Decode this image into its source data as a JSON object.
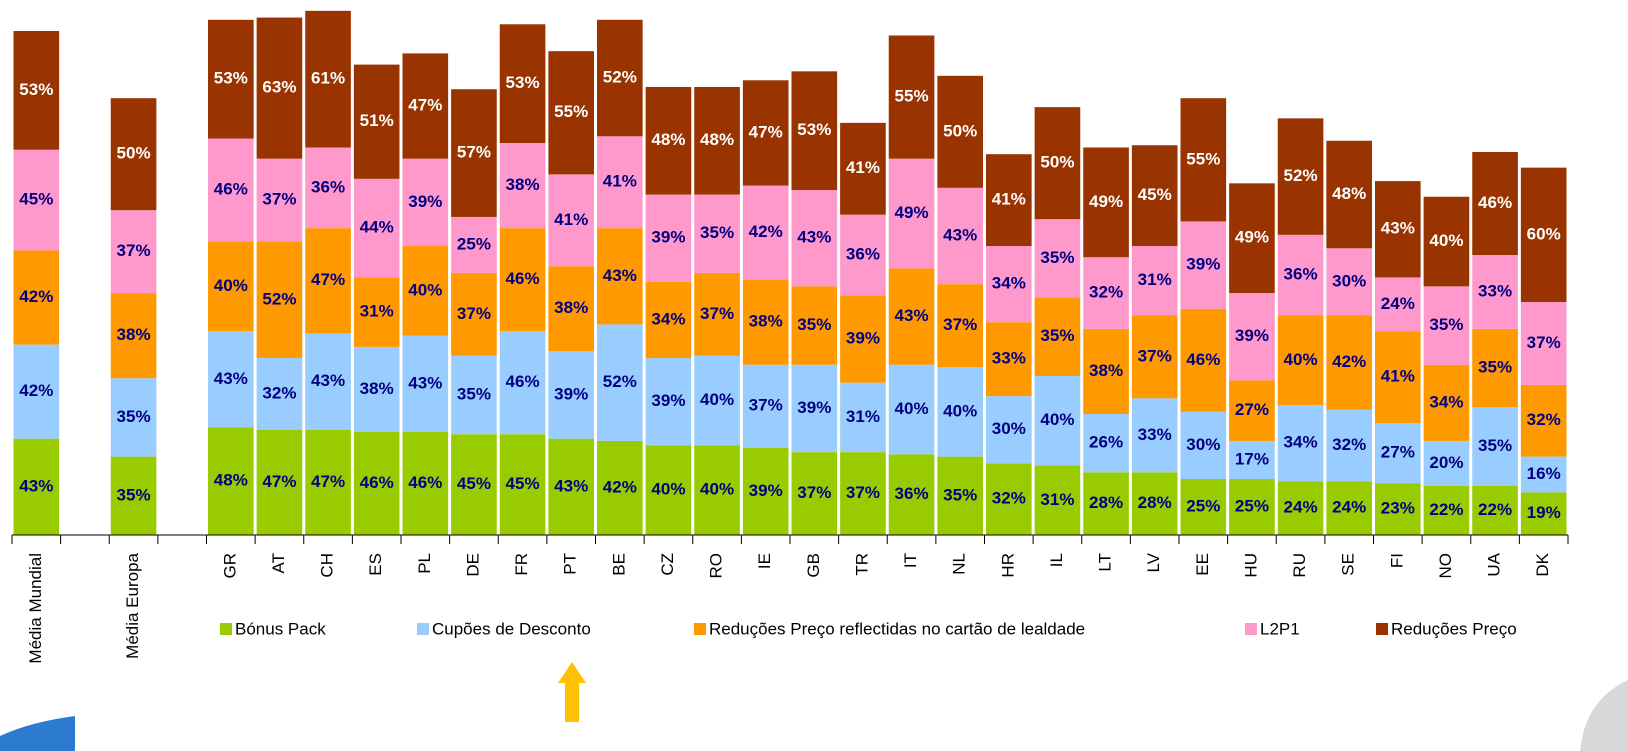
{
  "chart_data": {
    "type": "stacked_bar",
    "categories": [
      "Média Mundial",
      null,
      "Média Europa",
      null,
      "GR",
      "AT",
      "CH",
      "ES",
      "PL",
      "DE",
      "FR",
      "PT",
      "BE",
      "CZ",
      "RO",
      "IE",
      "GB",
      "TR",
      "IT",
      "NL",
      "HR",
      "IL",
      "LT",
      "LV",
      "EE",
      "HU",
      "RU",
      "SE",
      "FI",
      "NO",
      "UA",
      "DK"
    ],
    "series": [
      {
        "name": "Bónus Pack",
        "color": "#99cc00",
        "label_color": "#000080",
        "values": [
          43,
          null,
          35,
          null,
          48,
          47,
          47,
          46,
          46,
          45,
          45,
          43,
          42,
          40,
          40,
          39,
          37,
          37,
          36,
          35,
          32,
          31,
          28,
          28,
          25,
          25,
          24,
          24,
          23,
          22,
          22,
          19
        ],
        "value_labels": [
          "43%",
          null,
          "35%",
          null,
          "48%",
          "47%",
          "47%",
          "46%",
          "46%",
          "45%",
          "45%",
          "43%",
          "42%",
          "40%",
          "40%",
          "39%",
          "37%",
          "37%",
          "36%",
          "35%",
          "32%",
          "31%",
          "28%",
          "28%",
          "25%",
          "25%",
          "24%",
          "24%",
          "23%",
          "22%",
          "22%",
          "19%"
        ]
      },
      {
        "name": "Cupões de Desconto",
        "color": "#99ccff",
        "label_color": "#000080",
        "values": [
          42,
          null,
          35,
          null,
          43,
          32,
          43,
          38,
          43,
          35,
          46,
          39,
          52,
          39,
          40,
          37,
          39,
          31,
          40,
          40,
          30,
          40,
          26,
          33,
          30,
          17,
          34,
          32,
          27,
          20,
          35,
          16
        ],
        "value_labels": [
          "42%",
          null,
          "35%",
          null,
          "43%",
          "32%",
          "43%",
          "38%",
          "43%",
          "35%",
          "46%",
          "39%",
          "52%",
          "39%",
          "40%",
          "37%",
          "39%",
          "31%",
          "40%",
          "40%",
          "30%",
          "40%",
          "26%",
          "33%",
          "30%",
          "17%",
          "34%",
          "32%",
          "27%",
          "20%",
          "35%",
          "16%"
        ]
      },
      {
        "name": "Reduções Preço reflectidas no cartão de lealdade",
        "color": "#ff9900",
        "label_color": "#000080",
        "values": [
          42,
          null,
          38,
          null,
          40,
          52,
          47,
          31,
          40,
          37,
          46,
          38,
          43,
          34,
          37,
          38,
          35,
          39,
          43,
          37,
          33,
          35,
          38,
          37,
          46,
          27,
          40,
          42,
          41,
          34,
          35,
          32
        ],
        "value_labels": [
          "42%",
          null,
          "38%",
          null,
          "40%",
          "52%",
          "47%",
          "31%",
          "40%",
          "37%",
          "46%",
          "38%",
          "43%",
          "34%",
          "37%",
          "38%",
          "35%",
          "39%",
          "43%",
          "37%",
          "33%",
          "35%",
          "38%",
          "37%",
          "46%",
          "27%",
          "40%",
          "42%",
          "41%",
          "34%",
          "35%",
          "32%"
        ]
      },
      {
        "name": "L2P1",
        "color": "#ff99cc",
        "label_color": "#000080",
        "values": [
          45,
          null,
          37,
          null,
          46,
          37,
          36,
          44,
          39,
          25,
          38,
          41,
          41,
          39,
          35,
          42,
          43,
          36,
          49,
          43,
          34,
          35,
          32,
          31,
          39,
          39,
          36,
          30,
          24,
          35,
          33,
          37
        ],
        "value_labels": [
          "45%",
          null,
          "37%",
          null,
          "46%",
          "37%",
          "36%",
          "44%",
          "39%",
          "25%",
          "38%",
          "41%",
          "41%",
          "39%",
          "35%",
          "42%",
          "43%",
          "36%",
          "49%",
          "43%",
          "34%",
          "35%",
          "32%",
          "31%",
          "39%",
          "39%",
          "36%",
          "30%",
          "24%",
          "35%",
          "33%",
          "37%"
        ]
      },
      {
        "name": "Reduções Preço",
        "color": "#993300",
        "label_color": "#ffffff",
        "values": [
          53,
          null,
          50,
          null,
          53,
          63,
          61,
          51,
          47,
          57,
          53,
          55,
          52,
          48,
          48,
          47,
          53,
          41,
          55,
          50,
          41,
          50,
          49,
          45,
          55,
          49,
          52,
          48,
          43,
          40,
          46,
          60
        ],
        "value_labels": [
          "53%",
          null,
          "50%",
          null,
          "53%",
          "63%",
          "61%",
          "51%",
          "47%",
          "57%",
          "53%",
          "55%",
          "52%",
          "48%",
          "48%",
          "47%",
          "53%",
          "41%",
          "55%",
          "50%",
          "41%",
          "50%",
          "49%",
          "45%",
          "55%",
          "49%",
          "52%",
          "48%",
          "43%",
          "40%",
          "46%",
          "60%"
        ]
      }
    ]
  }
}
